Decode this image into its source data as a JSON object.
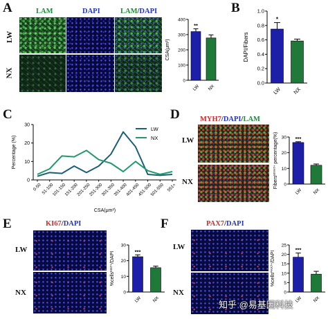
{
  "panels": {
    "A": {
      "label": "A",
      "channel_titles": [
        {
          "text": "LAM",
          "color": "#1e8a3a"
        },
        {
          "text": "DAPI",
          "color": "#2233cc"
        },
        {
          "text": "LAM",
          "color": "#1e8a3a"
        },
        {
          "text": "/",
          "color": "#111111"
        },
        {
          "text": "DAPI",
          "color": "#2233cc"
        }
      ],
      "rows": [
        "LW",
        "NX"
      ]
    },
    "B": {
      "label": "B"
    },
    "C": {
      "label": "C"
    },
    "D": {
      "label": "D",
      "title_parts": [
        {
          "text": "MYH7",
          "color": "#d42a2a"
        },
        {
          "text": "/",
          "color": "#111111"
        },
        {
          "text": "DAPI",
          "color": "#2233cc"
        },
        {
          "text": "/",
          "color": "#111111"
        },
        {
          "text": "LAM",
          "color": "#1e8a3a"
        }
      ],
      "rows": [
        "LW",
        "NX"
      ]
    },
    "E": {
      "label": "E",
      "title_parts": [
        {
          "text": "KI67",
          "color": "#d42a2a"
        },
        {
          "text": "/",
          "color": "#111111"
        },
        {
          "text": "DAPI",
          "color": "#2233cc"
        }
      ],
      "rows": [
        "LW",
        "NX"
      ]
    },
    "F": {
      "label": "F",
      "title_parts": [
        {
          "text": "PAX7",
          "color": "#d42a2a"
        },
        {
          "text": "/",
          "color": "#111111"
        },
        {
          "text": "DAPI",
          "color": "#2233cc"
        }
      ],
      "rows": [
        "LW",
        "NX"
      ]
    }
  },
  "watermark": "知乎 @易基因科技",
  "colors": {
    "blue": "#1d1fa8",
    "green": "#1f7a3a",
    "teal_dark": "#1a5e78",
    "teal_light": "#1f9a6a"
  },
  "chart_data": [
    {
      "id": "A-bar",
      "type": "bar",
      "categories": [
        "LW",
        "NX"
      ],
      "values": [
        320,
        278
      ],
      "errors": [
        18,
        20
      ],
      "ylabel": "CSA(μm²)",
      "ylim": [
        0,
        400
      ],
      "yticks": [
        0,
        100,
        200,
        300,
        400
      ],
      "significance": "**"
    },
    {
      "id": "B-bar",
      "type": "bar",
      "categories": [
        "LW",
        "NX"
      ],
      "values": [
        0.75,
        0.585
      ],
      "errors": [
        0.09,
        0.025
      ],
      "ylabel": "DAPI/Fibers",
      "ylim": [
        0,
        1.0
      ],
      "yticks": [
        "0.0",
        "0.2",
        "0.4",
        "0.6",
        "0.8",
        "1.0"
      ],
      "significance": "*"
    },
    {
      "id": "C-line",
      "type": "line",
      "categories": [
        "0-50",
        "51-100",
        "101-150",
        "151-200",
        "201-250",
        "251-300",
        "301-350",
        "351-400",
        "401-450",
        "451-500",
        "501-550",
        "551+"
      ],
      "series": [
        {
          "name": "LW",
          "values": [
            2,
            4,
            3.5,
            7.5,
            4,
            7.5,
            14,
            26,
            18,
            3,
            2.5,
            3
          ]
        },
        {
          "name": "NX",
          "values": [
            3,
            6,
            13,
            12.5,
            16,
            11,
            9,
            4.5,
            10,
            5,
            3,
            4.5
          ]
        }
      ],
      "ylabel": "Percentage (%)",
      "xlabel": "CSA(μm²)",
      "ylim": [
        0,
        30
      ],
      "yticks": [
        0,
        10,
        20,
        30
      ],
      "legend": "top-right"
    },
    {
      "id": "D-bar",
      "type": "bar",
      "categories": [
        "LW",
        "NX"
      ],
      "values": [
        26.5,
        12
      ],
      "errors": [
        0.5,
        0.8
      ],
      "ylabel": "Fibers^MYH7+ percentage(%)",
      "ylabel_parts": {
        "pre": "Fibers",
        "sup": "MYH7+",
        "post": " percentage(%)"
      },
      "ylim": [
        0,
        30
      ],
      "yticks": [
        0,
        10,
        20,
        30
      ],
      "significance": "***"
    },
    {
      "id": "E-bar",
      "type": "bar",
      "categories": [
        "LW",
        "NX"
      ],
      "values": [
        22.5,
        15.5
      ],
      "errors": [
        1.2,
        1.0
      ],
      "ylabel": "%cells^KI67+/DAPI",
      "ylabel_parts": {
        "pre": "%cells",
        "sup": "KI67+",
        "post": "/DAPI"
      },
      "ylim": [
        0,
        30
      ],
      "yticks": [
        0,
        10,
        20,
        30
      ],
      "significance": "***"
    },
    {
      "id": "F-bar",
      "type": "bar",
      "categories": [
        "LW",
        "NX"
      ],
      "values": [
        18.5,
        9.5
      ],
      "errors": [
        2.2,
        1.5
      ],
      "ylabel": "%cells^PAX7+/DAPI",
      "ylabel_parts": {
        "pre": "%cells",
        "sup": "PAX7+",
        "post": "/DAPI"
      },
      "ylim": [
        0,
        25
      ],
      "yticks": [
        0,
        5,
        10,
        15,
        20,
        25
      ],
      "significance": "***"
    }
  ]
}
